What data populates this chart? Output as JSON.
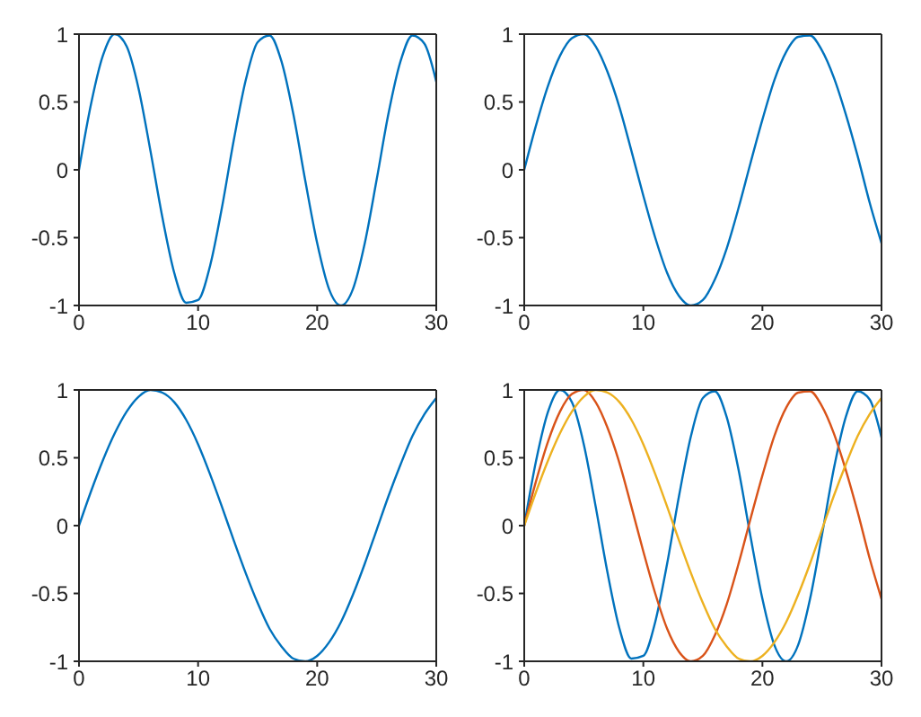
{
  "chart_data": [
    {
      "type": "line",
      "x": [
        0,
        1,
        2,
        3,
        4,
        5,
        6,
        7,
        8,
        9,
        10,
        11,
        12,
        13,
        14,
        15,
        16,
        17,
        18,
        19,
        20,
        21,
        22,
        23,
        24,
        25,
        26,
        27,
        28,
        29,
        30
      ],
      "xlim": [
        0,
        30
      ],
      "xticks": [
        0,
        10,
        20,
        30
      ],
      "ylim": [
        -1,
        1
      ],
      "yticks": [
        -1,
        -0.5,
        0,
        0.5,
        1
      ],
      "grid": false,
      "legend": false,
      "marker": "none",
      "line_style": "solid",
      "series": [
        {
          "color": "#0072bd",
          "values": [
            0,
            0.48,
            0.84,
            1.0,
            0.91,
            0.6,
            0.14,
            -0.35,
            -0.76,
            -0.98,
            -0.96,
            -0.71,
            -0.28,
            0.22,
            0.66,
            0.94,
            0.99,
            0.8,
            0.41,
            -0.08,
            -0.54,
            -0.88,
            -1.0,
            -0.88,
            -0.54,
            -0.07,
            0.42,
            0.8,
            0.99,
            0.93,
            0.65
          ]
        }
      ]
    },
    {
      "type": "line",
      "x": [
        0,
        1,
        2,
        3,
        4,
        5,
        6,
        7,
        8,
        9,
        10,
        11,
        12,
        13,
        14,
        15,
        16,
        17,
        18,
        19,
        20,
        21,
        22,
        23,
        24,
        25,
        26,
        27,
        28,
        29,
        30
      ],
      "xlim": [
        0,
        30
      ],
      "xticks": [
        0,
        10,
        20,
        30
      ],
      "ylim": [
        -1,
        1
      ],
      "yticks": [
        -1,
        -0.5,
        0,
        0.5,
        1
      ],
      "grid": false,
      "legend": false,
      "marker": "none",
      "line_style": "solid",
      "series": [
        {
          "color": "#0072bd",
          "values": [
            0,
            0.33,
            0.62,
            0.84,
            0.97,
            1.0,
            0.91,
            0.72,
            0.46,
            0.14,
            -0.19,
            -0.5,
            -0.76,
            -0.93,
            -1.0,
            -0.96,
            -0.81,
            -0.58,
            -0.28,
            0.05,
            0.37,
            0.66,
            0.87,
            0.98,
            0.99,
            0.88,
            0.68,
            0.41,
            0.1,
            -0.24,
            -0.54
          ]
        }
      ]
    },
    {
      "type": "line",
      "x": [
        0,
        1,
        2,
        3,
        4,
        5,
        6,
        7,
        8,
        9,
        10,
        11,
        12,
        13,
        14,
        15,
        16,
        17,
        18,
        19,
        20,
        21,
        22,
        23,
        24,
        25,
        26,
        27,
        28,
        29,
        30
      ],
      "xlim": [
        0,
        30
      ],
      "xticks": [
        0,
        10,
        20,
        30
      ],
      "ylim": [
        -1,
        1
      ],
      "yticks": [
        -1,
        -0.5,
        0,
        0.5,
        1
      ],
      "grid": false,
      "legend": false,
      "marker": "none",
      "line_style": "solid",
      "series": [
        {
          "color": "#0072bd",
          "values": [
            0,
            0.25,
            0.48,
            0.68,
            0.84,
            0.95,
            1.0,
            0.98,
            0.91,
            0.78,
            0.6,
            0.38,
            0.14,
            -0.11,
            -0.35,
            -0.57,
            -0.76,
            -0.89,
            -0.98,
            -1.0,
            -0.96,
            -0.86,
            -0.71,
            -0.51,
            -0.28,
            -0.03,
            0.22,
            0.45,
            0.66,
            0.82,
            0.94
          ]
        }
      ]
    },
    {
      "type": "line",
      "x": [
        0,
        1,
        2,
        3,
        4,
        5,
        6,
        7,
        8,
        9,
        10,
        11,
        12,
        13,
        14,
        15,
        16,
        17,
        18,
        19,
        20,
        21,
        22,
        23,
        24,
        25,
        26,
        27,
        28,
        29,
        30
      ],
      "xlim": [
        0,
        30
      ],
      "xticks": [
        0,
        10,
        20,
        30
      ],
      "ylim": [
        -1,
        1
      ],
      "yticks": [
        -1,
        -0.5,
        0,
        0.5,
        1
      ],
      "grid": false,
      "legend": false,
      "marker": "none",
      "line_style": "solid",
      "series": [
        {
          "color": "#0072bd",
          "values": [
            0,
            0.48,
            0.84,
            1.0,
            0.91,
            0.6,
            0.14,
            -0.35,
            -0.76,
            -0.98,
            -0.96,
            -0.71,
            -0.28,
            0.22,
            0.66,
            0.94,
            0.99,
            0.8,
            0.41,
            -0.08,
            -0.54,
            -0.88,
            -1.0,
            -0.88,
            -0.54,
            -0.07,
            0.42,
            0.8,
            0.99,
            0.93,
            0.65
          ]
        },
        {
          "color": "#d95319",
          "values": [
            0,
            0.33,
            0.62,
            0.84,
            0.97,
            1.0,
            0.91,
            0.72,
            0.46,
            0.14,
            -0.19,
            -0.5,
            -0.76,
            -0.93,
            -1.0,
            -0.96,
            -0.81,
            -0.58,
            -0.28,
            0.05,
            0.37,
            0.66,
            0.87,
            0.98,
            0.99,
            0.88,
            0.68,
            0.41,
            0.1,
            -0.24,
            -0.54
          ]
        },
        {
          "color": "#edb120",
          "values": [
            0,
            0.25,
            0.48,
            0.68,
            0.84,
            0.95,
            1.0,
            0.98,
            0.91,
            0.78,
            0.6,
            0.38,
            0.14,
            -0.11,
            -0.35,
            -0.57,
            -0.76,
            -0.89,
            -0.98,
            -1.0,
            -0.96,
            -0.86,
            -0.71,
            -0.51,
            -0.28,
            -0.03,
            0.22,
            0.45,
            0.66,
            0.82,
            0.94
          ]
        }
      ]
    }
  ]
}
